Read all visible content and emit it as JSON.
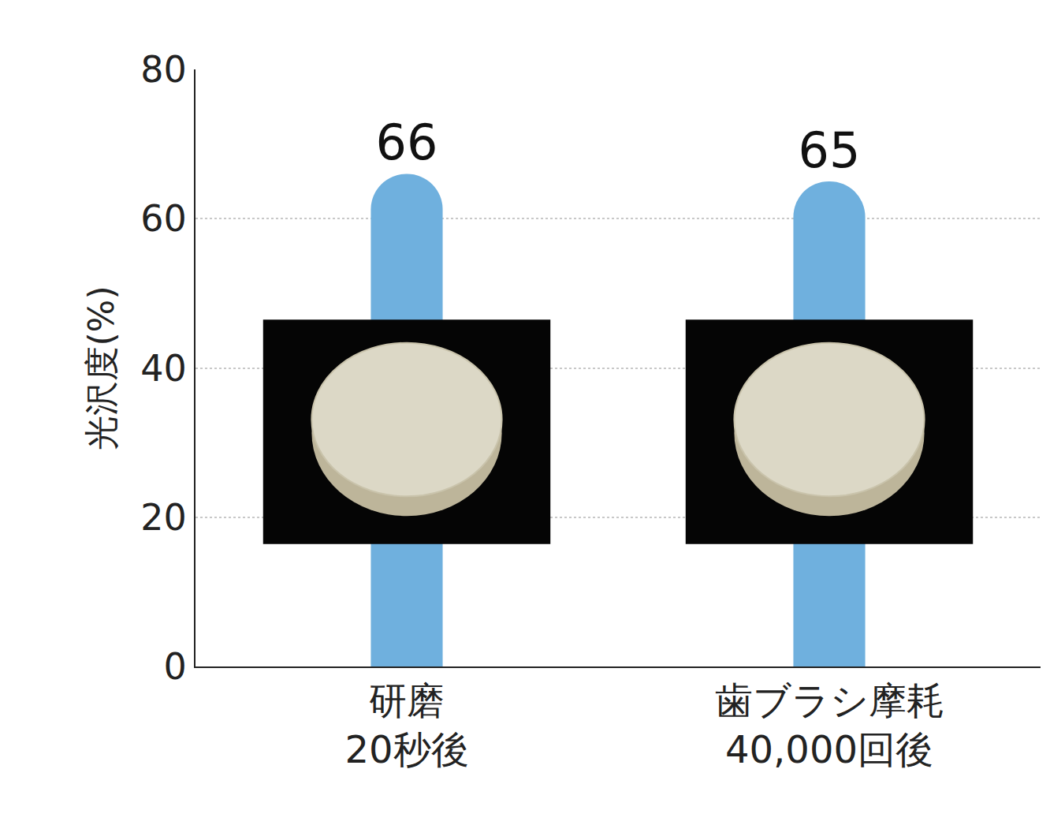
{
  "chart_data": {
    "type": "bar",
    "y_label": "光沢度(%)",
    "categories": [
      "研磨\n20秒後",
      "歯ブラシ摩耗\n40,000回後"
    ],
    "values": [
      66,
      65
    ],
    "color": "#6fb0de",
    "ylim": [
      0,
      80
    ],
    "yticks": [
      0,
      20,
      40,
      60,
      80
    ],
    "grid": true,
    "data_labels": true
  }
}
